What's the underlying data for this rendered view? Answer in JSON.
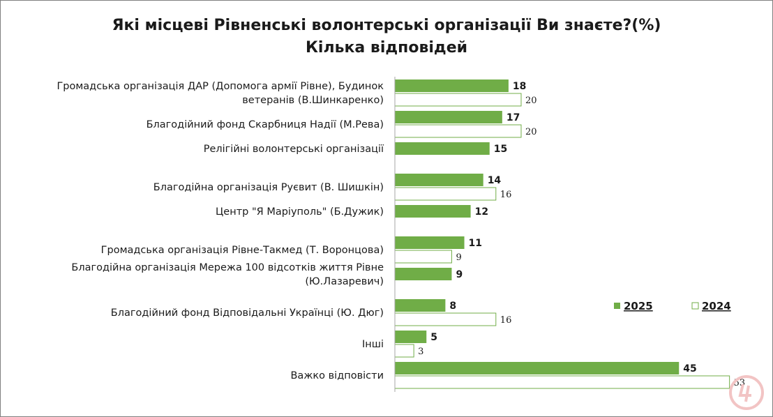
{
  "chart_data": {
    "type": "bar",
    "orientation": "horizontal",
    "title": "Які місцеві Рівненські волонтерські організації Ви знаєте?(%)",
    "subtitle": "Кілька відповідей",
    "categories": [
      [
        "Громадська організація ДАР (Допомога армії Рівне), Будинок",
        "ветеранів (В.Шинкаренко)"
      ],
      [
        "Благодійний фонд Скарбниця Надії (М.Рева)"
      ],
      [
        "Релігійні волонтерські організації"
      ],
      [
        "Благодійна організація Руєвит (В. Шишкін)"
      ],
      [
        "Центр \"Я Маріуполь\" (Б.Дужик)"
      ],
      [
        "Громадська організація Рівне-Такмед (Т. Воронцова)"
      ],
      [
        "Благодійна організація Мережа 100 відсотків життя Рівне",
        "(Ю.Лазаревич)"
      ],
      [
        "Благодійний фонд Відповідальні Українці (Ю. Дюг)"
      ],
      [
        "Інші"
      ],
      [
        "Важко відповісти"
      ]
    ],
    "series": [
      {
        "name": "2025",
        "color": "#70ad47",
        "values": [
          18,
          17,
          15,
          14,
          12,
          11,
          9,
          8,
          5,
          45
        ]
      },
      {
        "name": "2024",
        "color": "#ffffff",
        "values": [
          20,
          20,
          null,
          16,
          null,
          9,
          null,
          16,
          3,
          53
        ]
      }
    ],
    "xlim": [
      0,
      53
    ],
    "legend": "right",
    "grid": false,
    "xlabel": "",
    "ylabel": ""
  },
  "colors": {
    "bar_2025": "#70ad47",
    "bar_2024_fill": "#ffffff",
    "bar_2024_border": "#70ad47",
    "axis": "#a6a6a6"
  },
  "watermark_icon": "circle-logo-icon"
}
